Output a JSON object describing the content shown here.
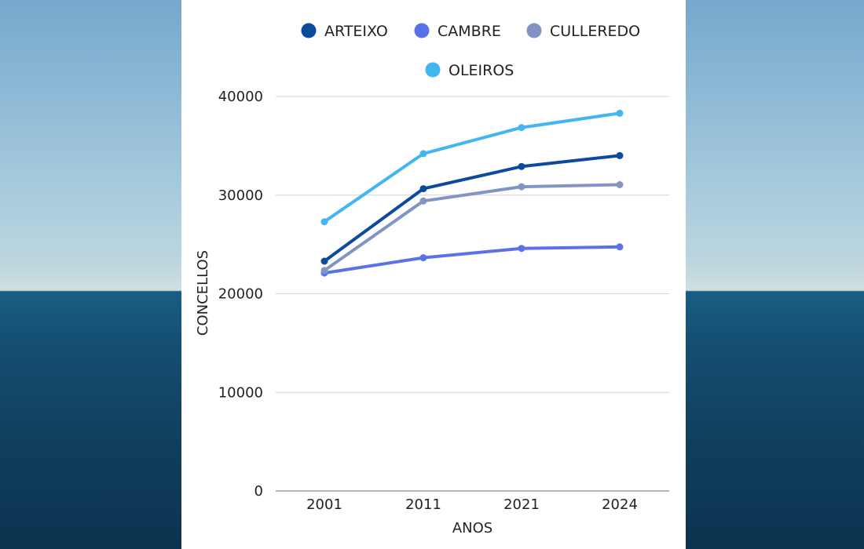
{
  "chart_data": {
    "type": "line",
    "title": "",
    "xlabel": "ANOS",
    "ylabel": "CONCELLOS",
    "categories": [
      "2001",
      "2011",
      "2021",
      "2024"
    ],
    "ylim": [
      0,
      40000
    ],
    "yticks": [
      0,
      10000,
      20000,
      30000,
      40000
    ],
    "grid": true,
    "legend_position": "top",
    "series": [
      {
        "name": "ARTEIXO",
        "color": "#0b4a9c",
        "values": [
          23300,
          30650,
          32900,
          34000
        ]
      },
      {
        "name": "CAMBRE",
        "color": "#5a72e8",
        "values": [
          22100,
          23650,
          24600,
          24750
        ]
      },
      {
        "name": "CULLEREDO",
        "color": "#8294c3",
        "values": [
          22350,
          29400,
          30850,
          31050
        ]
      },
      {
        "name": "OLEIROS",
        "color": "#41b6f0",
        "values": [
          27300,
          34200,
          36850,
          38300
        ]
      }
    ]
  }
}
